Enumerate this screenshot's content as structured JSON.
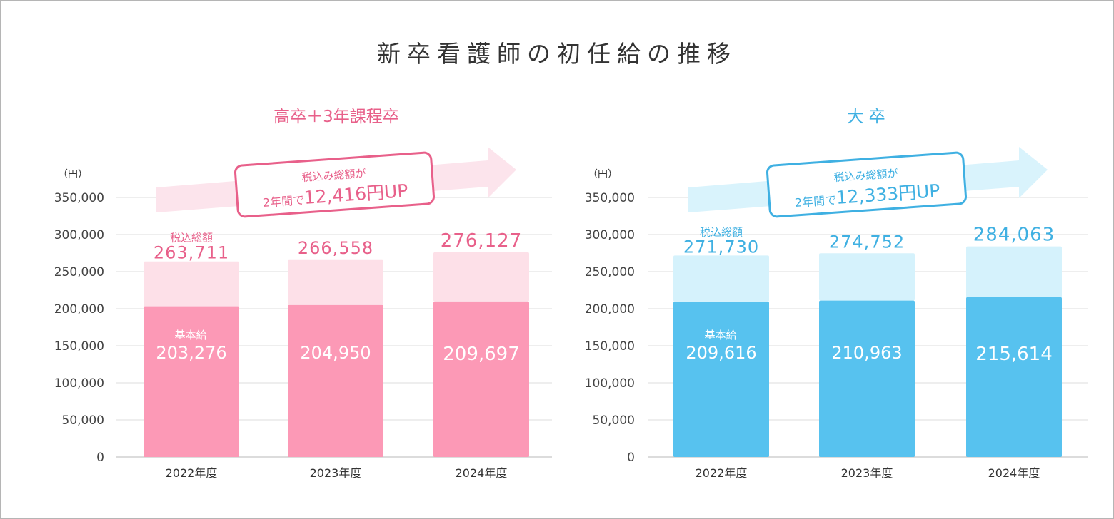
{
  "title": "新卒看護師の初任給の推移",
  "chart_data": [
    {
      "type": "bar",
      "title": "高卒＋3年課程卒",
      "unit": "（円）",
      "categories": [
        "2022年度",
        "2023年度",
        "2024年度"
      ],
      "series": [
        {
          "name": "基本給",
          "values": [
            203276,
            204950,
            209697
          ]
        },
        {
          "name": "税込総額",
          "values": [
            263711,
            266558,
            276127
          ]
        }
      ],
      "value_labels": {
        "base": [
          "203,276",
          "204,950",
          "209,697"
        ],
        "total": [
          "263,711",
          "266,558",
          "276,127"
        ]
      },
      "ylim": [
        0,
        350000
      ],
      "yticks": [
        "350,000",
        "300,000",
        "250,000",
        "200,000",
        "150,000",
        "100,000",
        "50,000",
        "0"
      ],
      "annotation": {
        "line1": "税込み総額が",
        "line2_prefix": "2年間で",
        "line2_emph": "12,416円UP"
      },
      "colors": {
        "base": "#fc99b6",
        "total": "#fde0e8",
        "accent": "#e8608a",
        "arrow": "#fce4ec"
      },
      "grid": true,
      "legend": "none"
    },
    {
      "type": "bar",
      "title": "大 卒",
      "unit": "（円）",
      "categories": [
        "2022年度",
        "2023年度",
        "2024年度"
      ],
      "series": [
        {
          "name": "基本給",
          "values": [
            209616,
            210963,
            215614
          ]
        },
        {
          "name": "税込総額",
          "values": [
            271730,
            274752,
            284063
          ]
        }
      ],
      "value_labels": {
        "base": [
          "209,616",
          "210,963",
          "215,614"
        ],
        "total": [
          "271,730",
          "274,752",
          "284,063"
        ]
      },
      "ylim": [
        0,
        350000
      ],
      "yticks": [
        "350,000",
        "300,000",
        "250,000",
        "200,000",
        "150,000",
        "100,000",
        "50,000",
        "0"
      ],
      "annotation": {
        "line1": "税込み総額が",
        "line2_prefix": "2年間で",
        "line2_emph": "12,333円UP"
      },
      "colors": {
        "base": "#57c2ef",
        "total": "#d5f2fc",
        "accent": "#3fb0e2",
        "arrow": "#d9f3fc"
      },
      "grid": true,
      "legend": "none"
    }
  ]
}
